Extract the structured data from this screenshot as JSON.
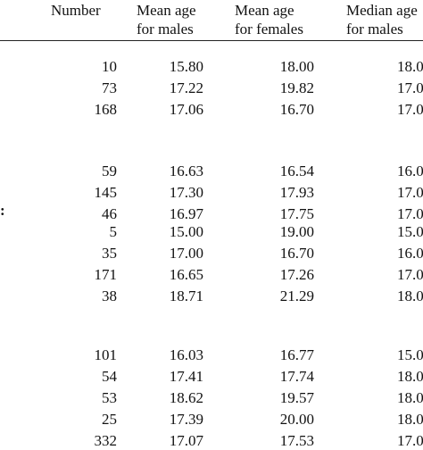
{
  "headers": {
    "number": [
      "Number"
    ],
    "mean_males": [
      "Mean age",
      "for males"
    ],
    "mean_females": [
      "Mean age",
      "for females"
    ],
    "median_males": [
      "Median age",
      "for  males"
    ]
  },
  "groups": [
    {
      "stub": "",
      "rows": [
        {
          "number": "10",
          "mean_males": "15.80",
          "mean_females": "18.00",
          "median_males": "18.0"
        },
        {
          "number": "73",
          "mean_males": "17.22",
          "mean_females": "19.82",
          "median_males": "17.0"
        },
        {
          "number": "168",
          "mean_males": "17.06",
          "mean_females": "16.70",
          "median_males": "17.0"
        }
      ]
    },
    {
      "stub": "",
      "rows": [
        {
          "number": "59",
          "mean_males": "16.63",
          "mean_females": "16.54",
          "median_males": "16.0"
        },
        {
          "number": "145",
          "mean_males": "17.30",
          "mean_females": "17.93",
          "median_males": "17.0"
        },
        {
          "number": "46",
          "mean_males": "16.97",
          "mean_females": "17.75",
          "median_males": "17.0"
        }
      ]
    },
    {
      "stub": ":",
      "rows": [
        {
          "number": "5",
          "mean_males": "15.00",
          "mean_females": "19.00",
          "median_males": "15.0"
        },
        {
          "number": "35",
          "mean_males": "17.00",
          "mean_females": "16.70",
          "median_males": "16.0"
        },
        {
          "number": "171",
          "mean_males": "16.65",
          "mean_females": "17.26",
          "median_males": "17.0"
        },
        {
          "number": "38",
          "mean_males": "18.71",
          "mean_females": "21.29",
          "median_males": "18.0"
        }
      ]
    },
    {
      "stub": "",
      "rows": [
        {
          "number": "101",
          "mean_males": "16.03",
          "mean_females": "16.77",
          "median_males": "15.0"
        },
        {
          "number": "54",
          "mean_males": "17.41",
          "mean_females": "17.74",
          "median_males": "18.0"
        },
        {
          "number": "53",
          "mean_males": "18.62",
          "mean_females": "19.57",
          "median_males": "18.0"
        },
        {
          "number": "25",
          "mean_males": "17.39",
          "mean_females": "20.00",
          "median_males": "18.0"
        },
        {
          "number": "332",
          "mean_males": "17.07",
          "mean_females": "17.53",
          "median_males": "17.0"
        }
      ]
    }
  ]
}
